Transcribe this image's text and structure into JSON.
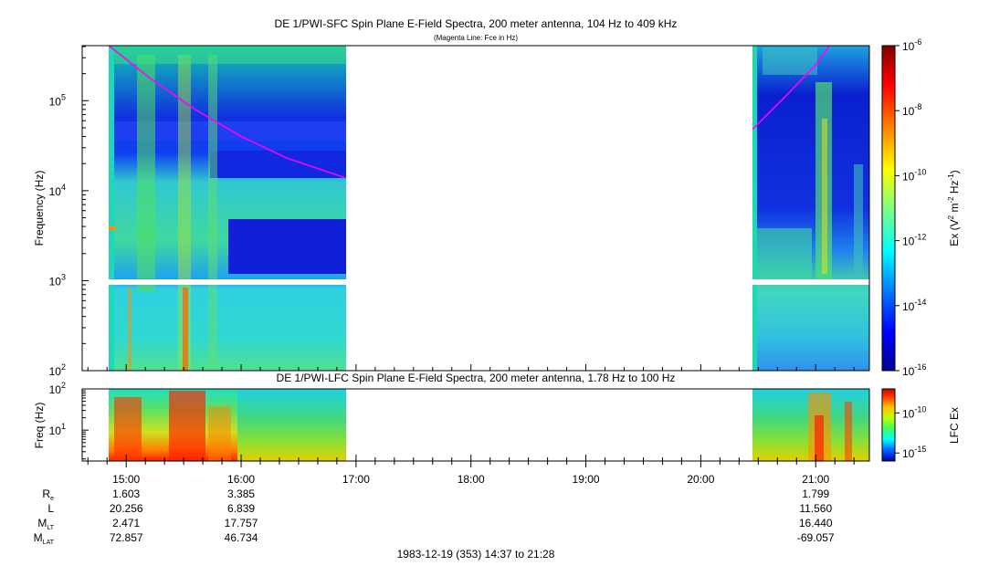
{
  "chart_data": [
    {
      "type": "heatmap",
      "title": "DE 1/PWI-SFC  Spin Plane E-Field Spectra, 200 meter antenna, 104 Hz to 409 kHz",
      "subtitle": "(Magenta Line: Fce in Hz)",
      "ylabel": "Frequency (Hz)",
      "y_scale": "log",
      "ylim": [
        100,
        409000
      ],
      "y_ticks": [
        {
          "value": 100,
          "base": "10",
          "exp": "2"
        },
        {
          "value": 1000,
          "base": "10",
          "exp": "3"
        },
        {
          "value": 10000,
          "base": "10",
          "exp": "4"
        },
        {
          "value": 100000,
          "base": "10",
          "exp": "5"
        }
      ],
      "data_intervals_ut": [
        [
          "14:48",
          "16:55"
        ],
        [
          "20:27",
          "21:28"
        ]
      ],
      "gap_band_hz": [
        900,
        1050
      ],
      "fce_line": {
        "color": "#ff00ff",
        "segments": [
          [
            [
              14.85,
              409000
            ],
            [
              15.2,
              180000
            ],
            [
              15.6,
              80000
            ],
            [
              16.0,
              40000
            ],
            [
              16.4,
              23000
            ],
            [
              16.9,
              14000
            ]
          ],
          [
            [
              20.45,
              48000
            ],
            [
              20.7,
              100000
            ],
            [
              21.0,
              250000
            ],
            [
              21.12,
              409000
            ]
          ]
        ]
      },
      "colorbar": {
        "label": {
          "pre": "Ex (V",
          "sup1": "2",
          "mid": " m",
          "sup2": "-2",
          "mid2": " Hz",
          "sup3": "-1",
          "post": ")"
        },
        "scale": "log",
        "range": [
          1e-16,
          1e-06
        ],
        "ticks": [
          {
            "value": 1e-06,
            "base": "10",
            "exp": "-6"
          },
          {
            "value": 1e-08,
            "base": "10",
            "exp": "-8"
          },
          {
            "value": 1e-10,
            "base": "10",
            "exp": "-10"
          },
          {
            "value": 1e-12,
            "base": "10",
            "exp": "-12"
          },
          {
            "value": 1e-14,
            "base": "10",
            "exp": "-14"
          },
          {
            "value": 1e-16,
            "base": "10",
            "exp": "-16"
          }
        ],
        "colormap": [
          "#00008f",
          "#0000ff",
          "#0080ff",
          "#00ffff",
          "#80ff80",
          "#ffff00",
          "#ff8000",
          "#ff0000",
          "#800000"
        ]
      }
    },
    {
      "type": "heatmap",
      "title": "DE 1/PWI-LFC  Spin Plane E-Field Spectra, 200 meter antenna, 1.78 Hz to 100 Hz",
      "ylabel": "Freq (Hz)",
      "y_scale": "log",
      "ylim": [
        1.78,
        100
      ],
      "y_ticks": [
        {
          "value": 10,
          "base": "10",
          "exp": "1"
        },
        {
          "value": 100,
          "base": "10",
          "exp": "2"
        }
      ],
      "data_intervals_ut": [
        [
          "14:48",
          "16:55"
        ],
        [
          "20:27",
          "21:28"
        ]
      ],
      "colorbar": {
        "label": "LFC Ex",
        "scale": "log",
        "range": [
          1e-16,
          1e-07
        ],
        "ticks": [
          {
            "value": 1e-10,
            "base": "10",
            "exp": "-10"
          },
          {
            "value": 1e-15,
            "base": "10",
            "exp": "-15"
          }
        ]
      }
    }
  ],
  "x_axis": {
    "range_ut_hours": [
      14.617,
      21.467
    ],
    "major_ticks": [
      "15:00",
      "16:00",
      "17:00",
      "18:00",
      "19:00",
      "20:00",
      "21:00"
    ],
    "minor_tick_step_minutes": 10
  },
  "ephemeris": {
    "rows": [
      {
        "label": "R",
        "sub": "e",
        "values": [
          "1.603",
          "3.385",
          "1.799"
        ]
      },
      {
        "label": "L",
        "sub": "",
        "values": [
          "20.256",
          "6.839",
          "11.560"
        ]
      },
      {
        "label": "M",
        "sub": "LT",
        "values": [
          "2.471",
          "17.757",
          "16.440"
        ]
      },
      {
        "label": "M",
        "sub": "LAT",
        "values": [
          "72.857",
          "46.734",
          "-69.057"
        ]
      }
    ],
    "column_times_ut": [
      15.0,
      16.0,
      21.0
    ]
  },
  "footer": "1983-12-19 (353) 14:37 to 21:28"
}
